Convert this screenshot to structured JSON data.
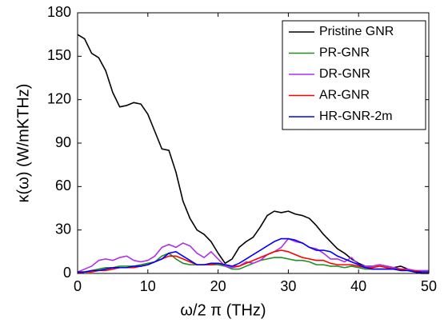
{
  "chart_data": {
    "type": "line",
    "xlabel": "ω/2 π (THz)",
    "ylabel": "κ(ω) (W/mKTHz)",
    "x": [
      0,
      1,
      2,
      3,
      4,
      5,
      6,
      7,
      8,
      9,
      10,
      11,
      12,
      13,
      14,
      15,
      16,
      17,
      18,
      19,
      20,
      21,
      22,
      23,
      24,
      25,
      26,
      27,
      28,
      29,
      30,
      31,
      32,
      33,
      34,
      35,
      36,
      37,
      38,
      39,
      40,
      41,
      42,
      43,
      44,
      45,
      46,
      47,
      48,
      49,
      50
    ],
    "series": [
      {
        "name": "Pristine GNR",
        "color": "#000000",
        "values": [
          165,
          162,
          152,
          149,
          140,
          125,
          115,
          116,
          118,
          117,
          110,
          98,
          86,
          85,
          70,
          50,
          38,
          30,
          27,
          22,
          14,
          7,
          10,
          18,
          22,
          25,
          32,
          40,
          43,
          42,
          43,
          41,
          40,
          38,
          33,
          27,
          22,
          17,
          14,
          10,
          7,
          5,
          5,
          6,
          5,
          4,
          5,
          3,
          1,
          0,
          0
        ]
      },
      {
        "name": "PR-GNR",
        "color": "#1f8f1f",
        "values": [
          1,
          1,
          2,
          3,
          4,
          4,
          5,
          5,
          5,
          6,
          7,
          8,
          12,
          14,
          10,
          7,
          6,
          6,
          6,
          6,
          6,
          5,
          3,
          3,
          5,
          7,
          9,
          10,
          11,
          11,
          10,
          9,
          9,
          8,
          6,
          6,
          5,
          5,
          4,
          5,
          4,
          3,
          3,
          3,
          3,
          3,
          2,
          2,
          1,
          1,
          1
        ]
      },
      {
        "name": "DR-GNR",
        "color": "#b030e8",
        "values": [
          1,
          3,
          5,
          9,
          10,
          9,
          11,
          12,
          9,
          8,
          9,
          12,
          18,
          20,
          18,
          21,
          19,
          14,
          11,
          15,
          10,
          5,
          4,
          5,
          8,
          7,
          9,
          13,
          15,
          18,
          24,
          22,
          21,
          18,
          17,
          14,
          10,
          10,
          8,
          11,
          6,
          5,
          5,
          6,
          5,
          4,
          3,
          3,
          2,
          2,
          2
        ]
      },
      {
        "name": "AR-GNR",
        "color": "#ff0000",
        "values": [
          0,
          1,
          1,
          2,
          2,
          3,
          4,
          4,
          4,
          5,
          6,
          8,
          10,
          12,
          12,
          10,
          8,
          6,
          6,
          6,
          7,
          6,
          5,
          5,
          7,
          9,
          11,
          13,
          15,
          16,
          15,
          13,
          11,
          10,
          9,
          9,
          7,
          6,
          6,
          6,
          5,
          4,
          4,
          5,
          4,
          3,
          3,
          2,
          2,
          1,
          1
        ]
      },
      {
        "name": "HR-GNR-2m",
        "color": "#0000ff",
        "values": [
          1,
          1,
          2,
          2,
          3,
          4,
          4,
          4,
          5,
          5,
          6,
          8,
          10,
          14,
          15,
          12,
          9,
          6,
          6,
          7,
          7,
          6,
          5,
          7,
          10,
          13,
          16,
          19,
          22,
          24,
          24,
          23,
          21,
          18,
          16,
          16,
          15,
          12,
          10,
          8,
          6,
          4,
          3,
          3,
          3,
          3,
          2,
          2,
          1,
          1,
          1
        ]
      }
    ],
    "xlim": [
      0,
      50
    ],
    "xticks": [
      0,
      10,
      20,
      30,
      40,
      50
    ],
    "ylim": [
      0,
      180
    ],
    "yticks": [
      0,
      30,
      60,
      90,
      120,
      150,
      180
    ],
    "legend": "upper right"
  }
}
